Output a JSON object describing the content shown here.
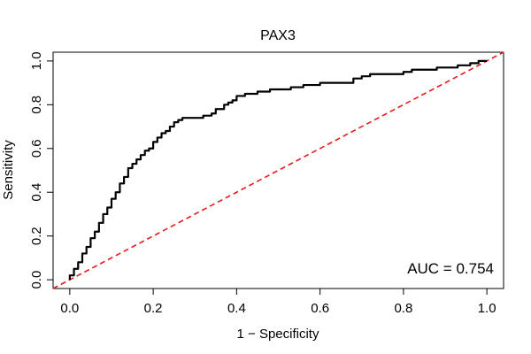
{
  "chart_data": {
    "type": "line",
    "title": "PAX3",
    "xlabel": "1 − Specificity",
    "ylabel": "Sensitivity",
    "xlim": [
      -0.04,
      1.04
    ],
    "ylim": [
      -0.04,
      1.04
    ],
    "x_ticks": [
      0.0,
      0.2,
      0.4,
      0.6,
      0.8,
      1.0
    ],
    "x_tick_labels": [
      "0.0",
      "0.2",
      "0.4",
      "0.6",
      "0.8",
      "1.0"
    ],
    "y_ticks": [
      0.0,
      0.2,
      0.4,
      0.6,
      0.8,
      1.0
    ],
    "y_tick_labels": [
      "0.0",
      "0.2",
      "0.4",
      "0.6",
      "0.8",
      "1.0"
    ],
    "grid": false,
    "legend": "none",
    "annotation": "AUC = 0.754",
    "series": [
      {
        "style": "solid",
        "color": "#000000",
        "x": [
          0.0,
          0.01,
          0.02,
          0.03,
          0.04,
          0.05,
          0.06,
          0.07,
          0.08,
          0.09,
          0.1,
          0.11,
          0.12,
          0.13,
          0.14,
          0.15,
          0.16,
          0.17,
          0.18,
          0.19,
          0.2,
          0.21,
          0.22,
          0.23,
          0.24,
          0.25,
          0.26,
          0.27,
          0.28,
          0.3,
          0.32,
          0.34,
          0.35,
          0.37,
          0.38,
          0.39,
          0.4,
          0.42,
          0.45,
          0.48,
          0.5,
          0.53,
          0.56,
          0.58,
          0.6,
          0.64,
          0.68,
          0.7,
          0.72,
          0.75,
          0.8,
          0.82,
          0.85,
          0.88,
          0.9,
          0.93,
          0.96,
          0.98,
          1.0
        ],
        "y": [
          0.0,
          0.02,
          0.05,
          0.08,
          0.12,
          0.15,
          0.19,
          0.22,
          0.26,
          0.3,
          0.33,
          0.37,
          0.4,
          0.44,
          0.47,
          0.51,
          0.53,
          0.55,
          0.57,
          0.59,
          0.6,
          0.63,
          0.65,
          0.67,
          0.68,
          0.7,
          0.72,
          0.73,
          0.74,
          0.74,
          0.74,
          0.75,
          0.76,
          0.78,
          0.8,
          0.81,
          0.82,
          0.84,
          0.85,
          0.86,
          0.87,
          0.87,
          0.88,
          0.89,
          0.89,
          0.9,
          0.9,
          0.92,
          0.93,
          0.94,
          0.94,
          0.95,
          0.96,
          0.96,
          0.97,
          0.97,
          0.98,
          0.99,
          1.0
        ]
      },
      {
        "style": "dashed",
        "color": "#e41a1c",
        "x": [
          -0.04,
          1.04
        ],
        "y": [
          -0.04,
          1.04
        ]
      }
    ]
  },
  "colors": {
    "roc_line": "#000000",
    "diagonal": "#e41a1c",
    "frame": "#000000"
  }
}
